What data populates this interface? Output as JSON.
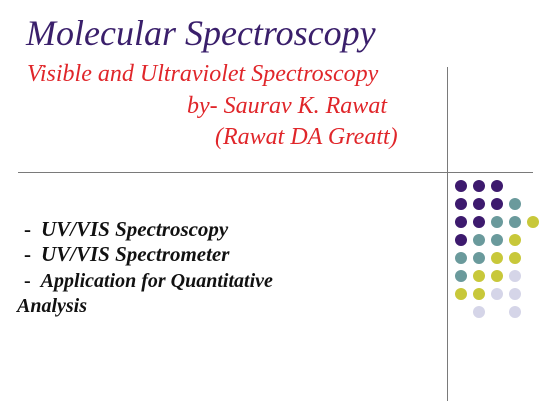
{
  "slide": {
    "title": "Molecular Spectroscopy",
    "subtitle_line1": "Visible and Ultraviolet Spectroscopy",
    "subtitle_line2": "by-  Saurav K. Rawat",
    "subtitle_line3": "(Rawat DA Greatt)",
    "bullets": [
      {
        "dash": "-",
        "text": "UV/VIS Spectroscopy"
      },
      {
        "dash": "-",
        "text": "UV/VIS Spectrometer"
      },
      {
        "dash": "-",
        "text": "Application for Quantitative",
        "continuation": "Analysis"
      }
    ]
  },
  "colors": {
    "title": "#3a1f6b",
    "subtitle": "#e0262a",
    "rule": "#7a7a7a",
    "dot_purple": "#3d1a6e",
    "dot_teal": "#6a9a9c",
    "dot_olive": "#c8c83a",
    "dot_lavender": "#d5d5e8"
  }
}
